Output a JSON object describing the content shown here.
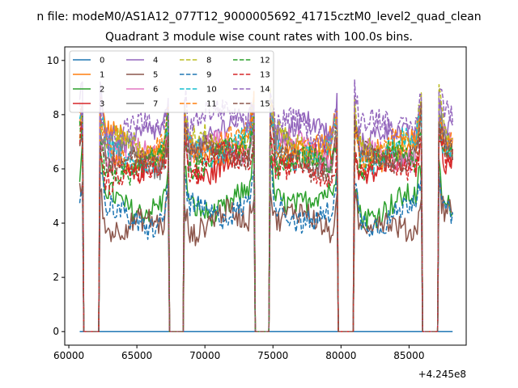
{
  "figure": {
    "suptitle": "n file: modeM0/AS1A12_077T12_9000005692_41715cztM0_level2_quad_clean",
    "offset_label": "+4.245e8"
  },
  "chart_data": {
    "type": "line",
    "title": "Quadrant 3 module wise count rates with 100.0s bins.",
    "xlabel": "",
    "ylabel": "",
    "xlim": [
      59700,
      89200
    ],
    "ylim": [
      -0.5,
      10.5
    ],
    "x_ticks": [
      60000,
      65000,
      70000,
      75000,
      80000,
      85000
    ],
    "x_tick_labels": [
      "60000",
      "65000",
      "70000",
      "75000",
      "80000",
      "85000"
    ],
    "y_ticks": [
      0,
      2,
      4,
      6,
      8,
      10
    ],
    "y_tick_labels": [
      "0",
      "2",
      "4",
      "6",
      "8",
      "10"
    ],
    "x_offset": 424500000,
    "grid": false,
    "legend_position": "top-left",
    "legend_columns": 4,
    "gaps": [
      [
        61000,
        62300
      ],
      [
        67300,
        68500
      ],
      [
        73600,
        74800
      ],
      [
        79700,
        81000
      ],
      [
        85900,
        87200
      ]
    ],
    "segments": [
      [
        60800,
        61000
      ],
      [
        62300,
        67300
      ],
      [
        68500,
        73600
      ],
      [
        74800,
        79700
      ],
      [
        81000,
        85900
      ],
      [
        87200,
        88200
      ]
    ],
    "series": [
      {
        "name": "0",
        "color": "#1f77b4",
        "dash": "solid",
        "level": 0.0
      },
      {
        "name": "1",
        "color": "#ff7f0e",
        "dash": "solid",
        "level": 6.9
      },
      {
        "name": "2",
        "color": "#2ca02c",
        "dash": "solid",
        "level": 4.8
      },
      {
        "name": "3",
        "color": "#d62728",
        "dash": "solid",
        "level": 6.2
      },
      {
        "name": "4",
        "color": "#9467bd",
        "dash": "solid",
        "level": 7.3
      },
      {
        "name": "5",
        "color": "#8c564b",
        "dash": "solid",
        "level": 4.0
      },
      {
        "name": "6",
        "color": "#e377c2",
        "dash": "solid",
        "level": 6.6
      },
      {
        "name": "7",
        "color": "#7f7f7f",
        "dash": "solid",
        "level": 6.5
      },
      {
        "name": "8",
        "color": "#bcbd22",
        "dash": "dashed",
        "level": 7.0
      },
      {
        "name": "9",
        "color": "#1f77b4",
        "dash": "dashed",
        "level": 4.4
      },
      {
        "name": "10",
        "color": "#17becf",
        "dash": "dashed",
        "level": 6.7
      },
      {
        "name": "11",
        "color": "#ff7f0e",
        "dash": "dashed",
        "level": 6.8
      },
      {
        "name": "12",
        "color": "#2ca02c",
        "dash": "dashed",
        "level": 6.3
      },
      {
        "name": "13",
        "color": "#d62728",
        "dash": "dashed",
        "level": 6.0
      },
      {
        "name": "14",
        "color": "#9467bd",
        "dash": "dashed",
        "level": 7.6
      },
      {
        "name": "15",
        "color": "#8c564b",
        "dash": "dashed",
        "level": 6.4
      }
    ]
  }
}
